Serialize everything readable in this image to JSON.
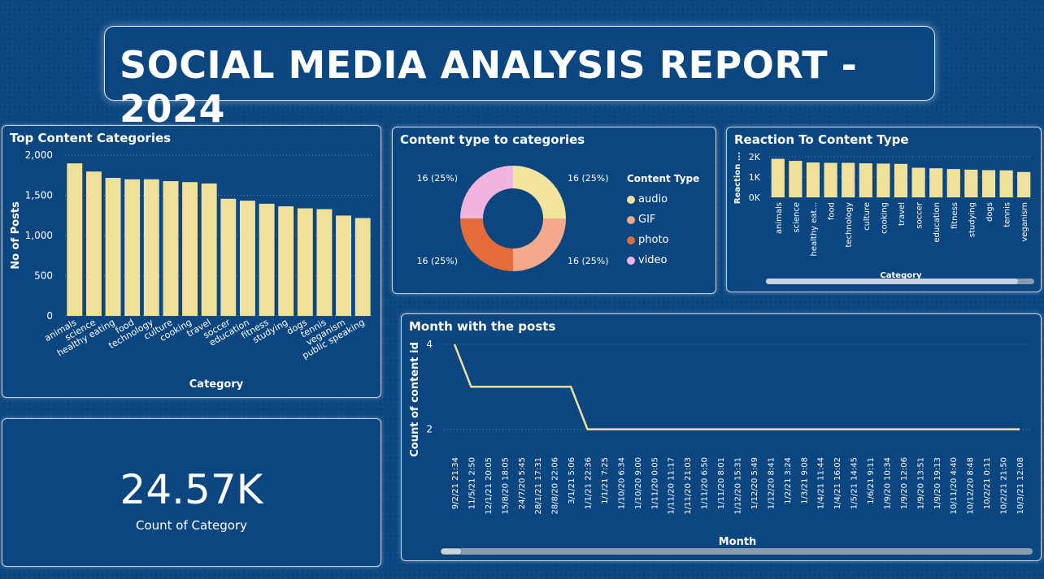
{
  "header": {
    "title": "SOCIAL MEDIA ANALYSIS REPORT - 2024"
  },
  "colors": {
    "background": "#0b4680",
    "bar": "#f0e19a",
    "line": "#f0e19a"
  },
  "top_categories": {
    "title": "Top Content Categories",
    "chart_data": {
      "type": "bar",
      "categories": [
        "animals",
        "science",
        "healthy eating",
        "food",
        "technology",
        "culture",
        "cooking",
        "travel",
        "soccer",
        "education",
        "fitness",
        "studying",
        "dogs",
        "tennis",
        "veganism",
        "public speaking"
      ],
      "values": [
        1897,
        1796,
        1717,
        1699,
        1699,
        1676,
        1664,
        1647,
        1457,
        1433,
        1395,
        1363,
        1338,
        1328,
        1248,
        1217
      ],
      "xlabel": "Category",
      "ylabel": "No of Posts",
      "yticks": [
        "0",
        "500",
        "1,000",
        "1,500",
        "2,000"
      ],
      "ylim": [
        0,
        2000
      ]
    }
  },
  "content_type": {
    "title": "Content type to categories",
    "chart_data": {
      "type": "pie",
      "legend_title": "Content Type",
      "slices": [
        {
          "name": "audio",
          "value": 16,
          "label": "16 (25%)",
          "color": "#f3e49b"
        },
        {
          "name": "GIF",
          "value": 16,
          "label": "16 (25%)",
          "color": "#f4a98a"
        },
        {
          "name": "photo",
          "value": 16,
          "label": "16 (25%)",
          "color": "#e46b3a"
        },
        {
          "name": "video",
          "value": 16,
          "label": "16 (25%)",
          "color": "#f3b3e0"
        }
      ]
    }
  },
  "reaction": {
    "title": "Reaction To Content Type",
    "chart_data": {
      "type": "bar",
      "categories": [
        "animals",
        "science",
        "healthy eat...",
        "food",
        "technology",
        "culture",
        "cooking",
        "travel",
        "soccer",
        "education",
        "fitness",
        "studying",
        "dogs",
        "tennis",
        "veganism"
      ],
      "values": [
        1897,
        1796,
        1717,
        1699,
        1699,
        1676,
        1664,
        1647,
        1457,
        1433,
        1395,
        1363,
        1338,
        1328,
        1248
      ],
      "xlabel": "Category",
      "ylabel": "Reaction ...",
      "yticks": [
        "0K",
        "1K",
        "2K"
      ],
      "ylim": [
        0,
        2000
      ]
    }
  },
  "kpi": {
    "value": "24.57K",
    "label": "Count of Category"
  },
  "month_posts": {
    "title": "Month with the posts",
    "chart_data": {
      "type": "line",
      "x": [
        "9/2/21 21:34",
        "11/5/21 2:50",
        "12/1/21 20:05",
        "15/8/20 18:05",
        "24/7/20 5:45",
        "28/1/21 17:31",
        "28/8/20 22:06",
        "3/1/21 5:06",
        "1/1/21 22:36",
        "1/1/21 7:25",
        "1/10/20 6:34",
        "1/10/20 9:00",
        "1/11/20 0:05",
        "1/11/20 11:17",
        "1/11/20 21:03",
        "1/11/20 6:50",
        "1/11/20 8:01",
        "1/12/20 15:31",
        "1/12/20 5:49",
        "1/12/20 8:41",
        "1/2/21 3:24",
        "1/3/21 9:08",
        "1/4/21 11:44",
        "1/4/21 16:02",
        "1/5/21 14:45",
        "1/6/21 9:11",
        "1/9/20 10:34",
        "1/9/20 12:06",
        "1/9/20 13:51",
        "1/9/20 19:13",
        "10/11/20 4:40",
        "10/12/20 8:48",
        "10/2/21 0:11",
        "10/2/21 21:50",
        "10/3/21 12:08"
      ],
      "y": [
        4,
        3,
        3,
        3,
        3,
        3,
        3,
        3,
        2,
        2,
        2,
        2,
        2,
        2,
        2,
        2,
        2,
        2,
        2,
        2,
        2,
        2,
        2,
        2,
        2,
        2,
        2,
        2,
        2,
        2,
        2,
        2,
        2,
        2,
        2
      ],
      "xlabel": "Month",
      "ylabel": "Count of content id",
      "yticks": [
        "2",
        "4"
      ],
      "ylim": [
        1.4,
        4
      ]
    }
  }
}
